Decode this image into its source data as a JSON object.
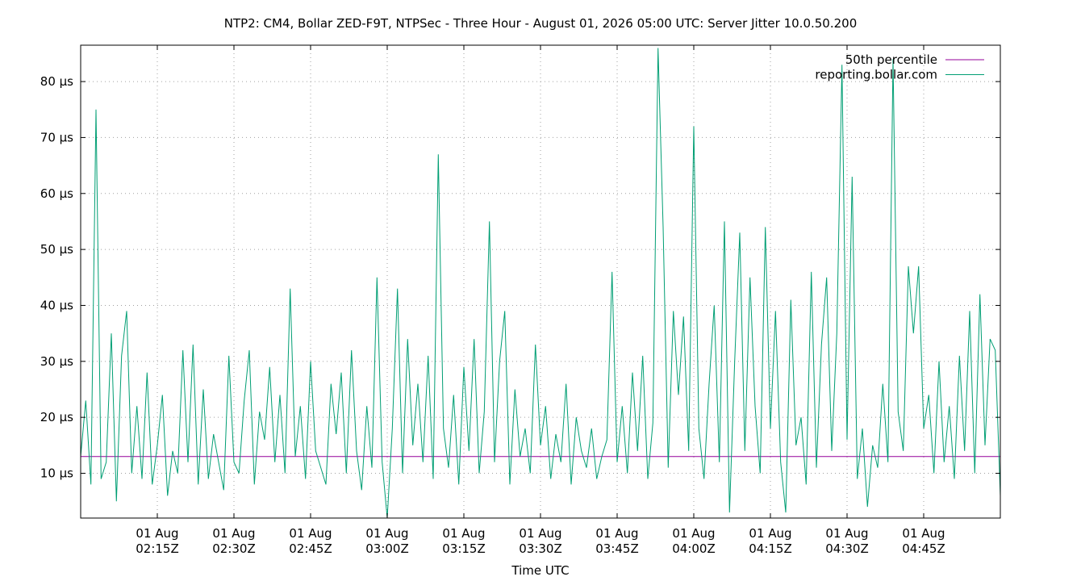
{
  "chart_data": {
    "type": "line",
    "title": "NTP2: CM4, Bollar ZED-F9T, NTPSec - Three Hour - August 01, 2026 05:00 UTC: Server Jitter 10.0.50.200",
    "xlabel": "Time UTC",
    "ylabel": "",
    "x_range": [
      "2026-08-01 02:00",
      "2026-08-01 05:00"
    ],
    "ylim": [
      2,
      86.5
    ],
    "y_ticks": [
      10,
      20,
      30,
      40,
      50,
      60,
      70,
      80
    ],
    "y_tick_labels": [
      "10 µs",
      "20 µs",
      "30 µs",
      "40 µs",
      "50 µs",
      "60 µs",
      "70 µs",
      "80 µs"
    ],
    "x_ticks": [
      "2026-08-01 02:15",
      "2026-08-01 02:30",
      "2026-08-01 02:45",
      "2026-08-01 03:00",
      "2026-08-01 03:15",
      "2026-08-01 03:30",
      "2026-08-01 03:45",
      "2026-08-01 04:00",
      "2026-08-01 04:15",
      "2026-08-01 04:30",
      "2026-08-01 04:45"
    ],
    "x_tick_labels": [
      [
        "01 Aug",
        "02:15Z"
      ],
      [
        "01 Aug",
        "02:30Z"
      ],
      [
        "01 Aug",
        "02:45Z"
      ],
      [
        "01 Aug",
        "03:00Z"
      ],
      [
        "01 Aug",
        "03:15Z"
      ],
      [
        "01 Aug",
        "03:30Z"
      ],
      [
        "01 Aug",
        "03:45Z"
      ],
      [
        "01 Aug",
        "04:00Z"
      ],
      [
        "01 Aug",
        "04:15Z"
      ],
      [
        "01 Aug",
        "04:30Z"
      ],
      [
        "01 Aug",
        "04:45Z"
      ]
    ],
    "grid": true,
    "legend_position": "top-right",
    "series": [
      {
        "name": "50th percentile",
        "color": "#94009a",
        "points": [
          [
            "2026-08-01 02:00",
            13
          ],
          [
            "2026-08-01 05:00",
            13
          ]
        ]
      },
      {
        "name": "reporting.bollar.com",
        "color": "#009e73",
        "points": [
          [
            "2026-08-01 02:00",
            13
          ],
          [
            "2026-08-01 02:01",
            23
          ],
          [
            "2026-08-01 02:02",
            8
          ],
          [
            "2026-08-01 02:03",
            75
          ],
          [
            "2026-08-01 02:04",
            9
          ],
          [
            "2026-08-01 02:05",
            12
          ],
          [
            "2026-08-01 02:06",
            35
          ],
          [
            "2026-08-01 02:07",
            5
          ],
          [
            "2026-08-01 02:08",
            31
          ],
          [
            "2026-08-01 02:09",
            39
          ],
          [
            "2026-08-01 02:10",
            10
          ],
          [
            "2026-08-01 02:11",
            22
          ],
          [
            "2026-08-01 02:12",
            9
          ],
          [
            "2026-08-01 02:13",
            28
          ],
          [
            "2026-08-01 02:14",
            8
          ],
          [
            "2026-08-01 02:15",
            15
          ],
          [
            "2026-08-01 02:16",
            24
          ],
          [
            "2026-08-01 02:17",
            6
          ],
          [
            "2026-08-01 02:18",
            14
          ],
          [
            "2026-08-01 02:19",
            10
          ],
          [
            "2026-08-01 02:20",
            32
          ],
          [
            "2026-08-01 02:21",
            12
          ],
          [
            "2026-08-01 02:22",
            33
          ],
          [
            "2026-08-01 02:23",
            8
          ],
          [
            "2026-08-01 02:24",
            25
          ],
          [
            "2026-08-01 02:25",
            9
          ],
          [
            "2026-08-01 02:26",
            17
          ],
          [
            "2026-08-01 02:27",
            12
          ],
          [
            "2026-08-01 02:28",
            7
          ],
          [
            "2026-08-01 02:29",
            31
          ],
          [
            "2026-08-01 02:30",
            12
          ],
          [
            "2026-08-01 02:31",
            10
          ],
          [
            "2026-08-01 02:32",
            23
          ],
          [
            "2026-08-01 02:33",
            32
          ],
          [
            "2026-08-01 02:34",
            8
          ],
          [
            "2026-08-01 02:35",
            21
          ],
          [
            "2026-08-01 02:36",
            16
          ],
          [
            "2026-08-01 02:37",
            29
          ],
          [
            "2026-08-01 02:38",
            12
          ],
          [
            "2026-08-01 02:39",
            24
          ],
          [
            "2026-08-01 02:40",
            10
          ],
          [
            "2026-08-01 02:41",
            43
          ],
          [
            "2026-08-01 02:42",
            13
          ],
          [
            "2026-08-01 02:43",
            22
          ],
          [
            "2026-08-01 02:44",
            9
          ],
          [
            "2026-08-01 02:45",
            30
          ],
          [
            "2026-08-01 02:46",
            14
          ],
          [
            "2026-08-01 02:47",
            11
          ],
          [
            "2026-08-01 02:48",
            8
          ],
          [
            "2026-08-01 02:49",
            26
          ],
          [
            "2026-08-01 02:50",
            17
          ],
          [
            "2026-08-01 02:51",
            28
          ],
          [
            "2026-08-01 02:52",
            10
          ],
          [
            "2026-08-01 02:53",
            32
          ],
          [
            "2026-08-01 02:54",
            14
          ],
          [
            "2026-08-01 02:55",
            7
          ],
          [
            "2026-08-01 02:56",
            22
          ],
          [
            "2026-08-01 02:57",
            11
          ],
          [
            "2026-08-01 02:58",
            45
          ],
          [
            "2026-08-01 02:59",
            12
          ],
          [
            "2026-08-01 03:00",
            2
          ],
          [
            "2026-08-01 03:01",
            18
          ],
          [
            "2026-08-01 03:02",
            43
          ],
          [
            "2026-08-01 03:03",
            10
          ],
          [
            "2026-08-01 03:04",
            34
          ],
          [
            "2026-08-01 03:05",
            15
          ],
          [
            "2026-08-01 03:06",
            26
          ],
          [
            "2026-08-01 03:07",
            12
          ],
          [
            "2026-08-01 03:08",
            31
          ],
          [
            "2026-08-01 03:09",
            9
          ],
          [
            "2026-08-01 03:10",
            67
          ],
          [
            "2026-08-01 03:11",
            18
          ],
          [
            "2026-08-01 03:12",
            11
          ],
          [
            "2026-08-01 03:13",
            24
          ],
          [
            "2026-08-01 03:14",
            8
          ],
          [
            "2026-08-01 03:15",
            29
          ],
          [
            "2026-08-01 03:16",
            14
          ],
          [
            "2026-08-01 03:17",
            34
          ],
          [
            "2026-08-01 03:18",
            10
          ],
          [
            "2026-08-01 03:19",
            21
          ],
          [
            "2026-08-01 03:20",
            55
          ],
          [
            "2026-08-01 03:21",
            12
          ],
          [
            "2026-08-01 03:22",
            30
          ],
          [
            "2026-08-01 03:23",
            39
          ],
          [
            "2026-08-01 03:24",
            8
          ],
          [
            "2026-08-01 03:25",
            25
          ],
          [
            "2026-08-01 03:26",
            13
          ],
          [
            "2026-08-01 03:27",
            18
          ],
          [
            "2026-08-01 03:28",
            10
          ],
          [
            "2026-08-01 03:29",
            33
          ],
          [
            "2026-08-01 03:30",
            15
          ],
          [
            "2026-08-01 03:31",
            22
          ],
          [
            "2026-08-01 03:32",
            9
          ],
          [
            "2026-08-01 03:33",
            17
          ],
          [
            "2026-08-01 03:34",
            12
          ],
          [
            "2026-08-01 03:35",
            26
          ],
          [
            "2026-08-01 03:36",
            8
          ],
          [
            "2026-08-01 03:37",
            20
          ],
          [
            "2026-08-01 03:38",
            14
          ],
          [
            "2026-08-01 03:39",
            11
          ],
          [
            "2026-08-01 03:40",
            18
          ],
          [
            "2026-08-01 03:41",
            9
          ],
          [
            "2026-08-01 03:42",
            13
          ],
          [
            "2026-08-01 03:43",
            16
          ],
          [
            "2026-08-01 03:44",
            46
          ],
          [
            "2026-08-01 03:45",
            12
          ],
          [
            "2026-08-01 03:46",
            22
          ],
          [
            "2026-08-01 03:47",
            10
          ],
          [
            "2026-08-01 03:48",
            28
          ],
          [
            "2026-08-01 03:49",
            14
          ],
          [
            "2026-08-01 03:50",
            31
          ],
          [
            "2026-08-01 03:51",
            9
          ],
          [
            "2026-08-01 03:52",
            19
          ],
          [
            "2026-08-01 03:53",
            86
          ],
          [
            "2026-08-01 03:54",
            54
          ],
          [
            "2026-08-01 03:55",
            11
          ],
          [
            "2026-08-01 03:56",
            39
          ],
          [
            "2026-08-01 03:57",
            24
          ],
          [
            "2026-08-01 03:58",
            38
          ],
          [
            "2026-08-01 03:59",
            14
          ],
          [
            "2026-08-01 04:00",
            72
          ],
          [
            "2026-08-01 04:01",
            18
          ],
          [
            "2026-08-01 04:02",
            9
          ],
          [
            "2026-08-01 04:03",
            26
          ],
          [
            "2026-08-01 04:04",
            40
          ],
          [
            "2026-08-01 04:05",
            12
          ],
          [
            "2026-08-01 04:06",
            55
          ],
          [
            "2026-08-01 04:07",
            3
          ],
          [
            "2026-08-01 04:08",
            30
          ],
          [
            "2026-08-01 04:09",
            53
          ],
          [
            "2026-08-01 04:10",
            14
          ],
          [
            "2026-08-01 04:11",
            45
          ],
          [
            "2026-08-01 04:12",
            22
          ],
          [
            "2026-08-01 04:13",
            10
          ],
          [
            "2026-08-01 04:14",
            54
          ],
          [
            "2026-08-01 04:15",
            18
          ],
          [
            "2026-08-01 04:16",
            39
          ],
          [
            "2026-08-01 04:17",
            12
          ],
          [
            "2026-08-01 04:18",
            3
          ],
          [
            "2026-08-01 04:19",
            41
          ],
          [
            "2026-08-01 04:20",
            15
          ],
          [
            "2026-08-01 04:21",
            20
          ],
          [
            "2026-08-01 04:22",
            8
          ],
          [
            "2026-08-01 04:23",
            46
          ],
          [
            "2026-08-01 04:24",
            11
          ],
          [
            "2026-08-01 04:25",
            33
          ],
          [
            "2026-08-01 04:26",
            45
          ],
          [
            "2026-08-01 04:27",
            14
          ],
          [
            "2026-08-01 04:28",
            35
          ],
          [
            "2026-08-01 04:29",
            83
          ],
          [
            "2026-08-01 04:30",
            16
          ],
          [
            "2026-08-01 04:31",
            63
          ],
          [
            "2026-08-01 04:32",
            9
          ],
          [
            "2026-08-01 04:33",
            18
          ],
          [
            "2026-08-01 04:34",
            4
          ],
          [
            "2026-08-01 04:35",
            15
          ],
          [
            "2026-08-01 04:36",
            11
          ],
          [
            "2026-08-01 04:37",
            26
          ],
          [
            "2026-08-01 04:38",
            12
          ],
          [
            "2026-08-01 04:39",
            84
          ],
          [
            "2026-08-01 04:40",
            21
          ],
          [
            "2026-08-01 04:41",
            14
          ],
          [
            "2026-08-01 04:42",
            47
          ],
          [
            "2026-08-01 04:43",
            35
          ],
          [
            "2026-08-01 04:44",
            47
          ],
          [
            "2026-08-01 04:45",
            18
          ],
          [
            "2026-08-01 04:46",
            24
          ],
          [
            "2026-08-01 04:47",
            10
          ],
          [
            "2026-08-01 04:48",
            30
          ],
          [
            "2026-08-01 04:49",
            12
          ],
          [
            "2026-08-01 04:50",
            22
          ],
          [
            "2026-08-01 04:51",
            9
          ],
          [
            "2026-08-01 04:52",
            31
          ],
          [
            "2026-08-01 04:53",
            14
          ],
          [
            "2026-08-01 04:54",
            39
          ],
          [
            "2026-08-01 04:55",
            10
          ],
          [
            "2026-08-01 04:56",
            42
          ],
          [
            "2026-08-01 04:57",
            15
          ],
          [
            "2026-08-01 04:58",
            34
          ],
          [
            "2026-08-01 04:59",
            32
          ],
          [
            "2026-08-01 05:00",
            6
          ]
        ]
      }
    ]
  }
}
